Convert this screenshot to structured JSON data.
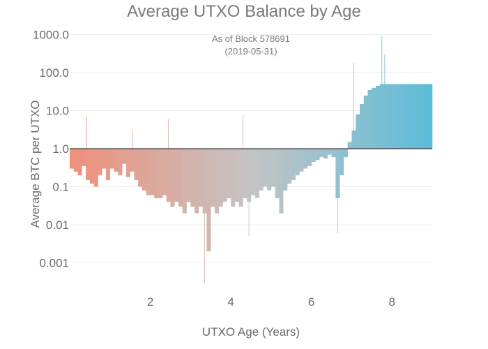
{
  "chart_data": {
    "type": "bar",
    "title": "Average UTXO Balance by Age",
    "subtitle_lines": [
      "As of Block 578691",
      "(2019-05-31)"
    ],
    "xlabel": "UTXO Age (Years)",
    "ylabel": "Average BTC per UTXO",
    "x_ticks": [
      2,
      4,
      6,
      8
    ],
    "y_ticks": [
      "0.001",
      "0.01",
      "0.1",
      "1.0",
      "10.0",
      "100.0",
      "1000.0"
    ],
    "y_scale": "log",
    "ylim": [
      0.0003,
      1500
    ],
    "xlim": [
      0,
      9
    ],
    "baseline": 1.0,
    "grid": true,
    "legend": "none",
    "colors": {
      "young": "#ef8f7a",
      "middle": "#c4c4c4",
      "old": "#5bbcd9",
      "baseline": "#444444",
      "grid": "#ececec"
    },
    "x": [
      0.05,
      0.15,
      0.25,
      0.35,
      0.45,
      0.55,
      0.65,
      0.75,
      0.85,
      0.95,
      1.05,
      1.15,
      1.25,
      1.35,
      1.45,
      1.55,
      1.65,
      1.75,
      1.85,
      1.95,
      2.05,
      2.15,
      2.25,
      2.35,
      2.45,
      2.55,
      2.65,
      2.75,
      2.85,
      2.95,
      3.05,
      3.15,
      3.25,
      3.35,
      3.45,
      3.55,
      3.65,
      3.75,
      3.85,
      3.95,
      4.05,
      4.15,
      4.25,
      4.35,
      4.45,
      4.55,
      4.65,
      4.75,
      4.85,
      4.95,
      5.05,
      5.15,
      5.25,
      5.35,
      5.45,
      5.55,
      5.65,
      5.75,
      5.85,
      5.95,
      6.05,
      6.15,
      6.25,
      6.35,
      6.45,
      6.55,
      6.65,
      6.75,
      6.85,
      6.95,
      7.05,
      7.15,
      7.25,
      7.35,
      7.45,
      7.55,
      7.65,
      7.75,
      7.85,
      7.95,
      8.05,
      8.15,
      8.25,
      8.35,
      8.45,
      8.55,
      8.65,
      8.75,
      8.85,
      8.95
    ],
    "y": [
      0.3,
      0.25,
      0.2,
      0.35,
      0.15,
      0.12,
      0.1,
      0.2,
      0.3,
      0.15,
      0.3,
      0.25,
      0.2,
      0.4,
      0.18,
      0.25,
      0.15,
      0.1,
      0.08,
      0.06,
      0.06,
      0.05,
      0.05,
      0.06,
      0.04,
      0.03,
      0.04,
      0.03,
      0.02,
      0.04,
      0.03,
      0.02,
      0.03,
      0.02,
      0.002,
      0.03,
      0.02,
      0.03,
      0.04,
      0.05,
      0.03,
      0.04,
      0.03,
      0.05,
      0.04,
      0.06,
      0.05,
      0.08,
      0.1,
      0.08,
      0.1,
      0.05,
      0.02,
      0.08,
      0.12,
      0.15,
      0.2,
      0.25,
      0.3,
      0.35,
      0.45,
      0.5,
      0.6,
      0.55,
      0.7,
      0.6,
      0.05,
      0.2,
      0.6,
      1.5,
      3,
      8,
      15,
      25,
      35,
      40,
      45,
      50,
      50,
      50,
      50,
      50,
      50,
      50,
      50,
      50,
      50,
      50,
      50,
      50
    ],
    "spikes": [
      {
        "x": 0.42,
        "y": 7.0
      },
      {
        "x": 1.55,
        "y": 3.0
      },
      {
        "x": 2.45,
        "y": 6.0
      },
      {
        "x": 3.35,
        "y": 0.0003
      },
      {
        "x": 4.3,
        "y": 8.0
      },
      {
        "x": 4.45,
        "y": 0.005
      },
      {
        "x": 6.65,
        "y": 0.006
      },
      {
        "x": 7.05,
        "y": 180
      },
      {
        "x": 7.75,
        "y": 900
      },
      {
        "x": 7.82,
        "y": 300
      }
    ]
  }
}
